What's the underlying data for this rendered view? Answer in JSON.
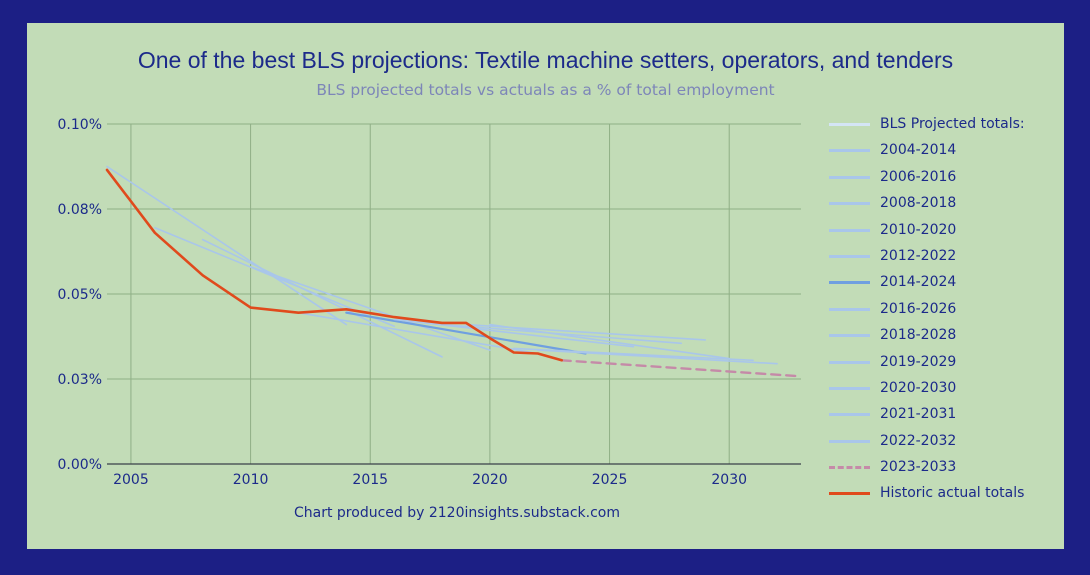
{
  "colors": {
    "frame": "#1c1f85",
    "panel": "#c2dcb7",
    "grid": "#8faf86",
    "text": "#1c2a8a",
    "subtitle": "#7d86b8",
    "projection": "#a9c6ea",
    "projection_header": "#d4e5f5",
    "projection_2014": "#6f9fe0",
    "projection_2023": "#c58aa8",
    "historic": "#e04a1c"
  },
  "chart_data": {
    "type": "line",
    "title": "One of the best BLS projections: Textile machine setters, operators, and tenders",
    "subtitle": "BLS projected totals vs actuals as a % of total employment",
    "footer": "Chart produced by 2120insights.substack.com",
    "xlabel": "",
    "ylabel": "",
    "xlim": [
      2004,
      2033
    ],
    "ylim": [
      0,
      0.1
    ],
    "x_ticks": [
      "2005",
      "2010",
      "2015",
      "2020",
      "2025",
      "2030"
    ],
    "y_ticks": [
      "0.00%",
      "0.03%",
      "0.05%",
      "0.08%",
      "0.10%"
    ],
    "grid": true,
    "legend_position": "right",
    "legend": [
      "BLS Projected totals:",
      "2004-2014",
      "2006-2016",
      "2008-2018",
      "2010-2020",
      "2012-2022",
      "2014-2024",
      "2016-2026",
      "2018-2028",
      "2019-2029",
      "2020-2030",
      "2021-2031",
      "2022-2032",
      "2023-2033",
      "Historic actual totals"
    ],
    "series": [
      {
        "name": "2004-2014",
        "x": [
          2004,
          2014
        ],
        "values": [
          0.0875,
          0.041
        ]
      },
      {
        "name": "2006-2016",
        "x": [
          2006,
          2016
        ],
        "values": [
          0.0695,
          0.0405
        ]
      },
      {
        "name": "2008-2018",
        "x": [
          2008,
          2018
        ],
        "values": [
          0.066,
          0.0315
        ]
      },
      {
        "name": "2010-2020",
        "x": [
          2010,
          2020
        ],
        "values": [
          0.058,
          0.0335
        ]
      },
      {
        "name": "2012-2022",
        "x": [
          2012,
          2022
        ],
        "values": [
          0.0445,
          0.0325
        ]
      },
      {
        "name": "2014-2024",
        "x": [
          2014,
          2024
        ],
        "values": [
          0.0445,
          0.0325
        ]
      },
      {
        "name": "2016-2026",
        "x": [
          2016,
          2026
        ],
        "values": [
          0.0425,
          0.0345
        ]
      },
      {
        "name": "2018-2028",
        "x": [
          2018,
          2028
        ],
        "values": [
          0.041,
          0.0355
        ]
      },
      {
        "name": "2019-2029",
        "x": [
          2019,
          2029
        ],
        "values": [
          0.041,
          0.0365
        ]
      },
      {
        "name": "2020-2030",
        "x": [
          2020,
          2030
        ],
        "values": [
          0.041,
          0.031
        ]
      },
      {
        "name": "2021-2031",
        "x": [
          2021,
          2031
        ],
        "values": [
          0.034,
          0.0305
        ]
      },
      {
        "name": "2022-2032",
        "x": [
          2022,
          2032
        ],
        "values": [
          0.0335,
          0.0295
        ]
      },
      {
        "name": "2023-2033",
        "x": [
          2023,
          2033
        ],
        "values": [
          0.0305,
          0.0258
        ]
      },
      {
        "name": "Historic actual totals",
        "x": [
          2004,
          2006,
          2008,
          2010,
          2012,
          2014,
          2016,
          2018,
          2019,
          2020,
          2021,
          2022,
          2023
        ],
        "values": [
          0.0865,
          0.068,
          0.0555,
          0.046,
          0.0445,
          0.0455,
          0.0432,
          0.0415,
          0.0415,
          0.037,
          0.0328,
          0.0325,
          0.0305
        ]
      }
    ]
  }
}
